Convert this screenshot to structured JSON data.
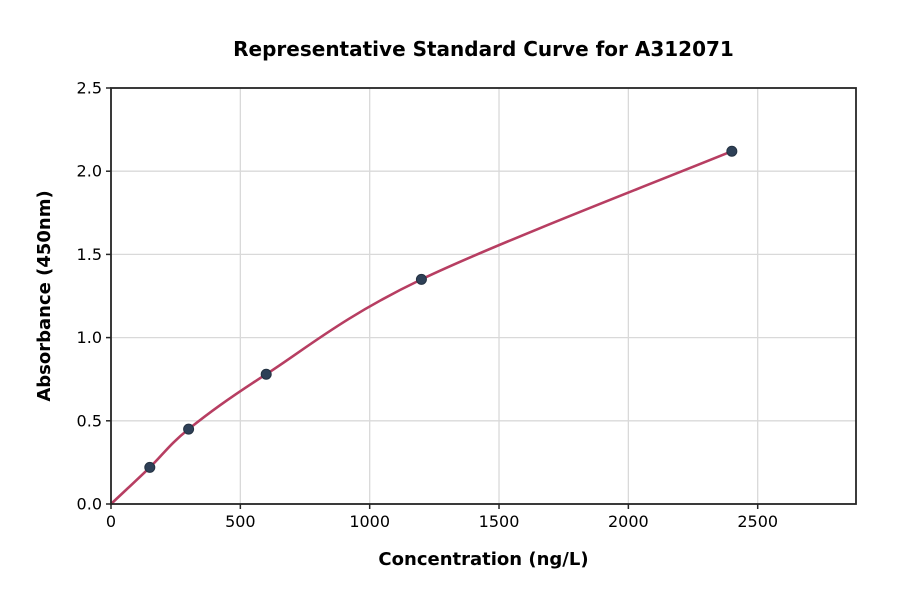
{
  "figure": {
    "background": "#ffffff"
  },
  "chart_data": {
    "type": "scatter",
    "subtype": "line+scatter standard curve",
    "title": "Representative Standard Curve for A312071",
    "xlabel": "Concentration (ng/L)",
    "ylabel": "Absorbance (450nm)",
    "x": [
      150,
      300,
      600,
      1200,
      2400
    ],
    "y": [
      0.22,
      0.45,
      0.78,
      1.35,
      2.12
    ],
    "fit_curve": {
      "style": "smooth",
      "x": [
        0,
        150,
        300,
        600,
        1200,
        2400
      ],
      "y": [
        0,
        0.22,
        0.45,
        0.78,
        1.35,
        2.12
      ]
    },
    "xlim": [
      0,
      2880
    ],
    "ylim": [
      0,
      2.5
    ],
    "xticks": {
      "values": [
        0,
        500,
        1000,
        1500,
        2000,
        2500
      ],
      "labels": [
        "0",
        "500",
        "1000",
        "1500",
        "2000",
        "2500"
      ]
    },
    "yticks": {
      "values": [
        0,
        0.5,
        1.0,
        1.5,
        2.0,
        2.5
      ],
      "labels": [
        "0.0",
        "0.5",
        "1.0",
        "1.5",
        "2.0",
        "2.5"
      ]
    },
    "grid": true,
    "legend_position": "none",
    "colors": {
      "curve_line": "#b73e62",
      "marker": "#2e4057",
      "marker_edge": "#243242",
      "grid_line": "#d9d9d9",
      "axis_spine": "#262626",
      "text": "#000000"
    }
  }
}
